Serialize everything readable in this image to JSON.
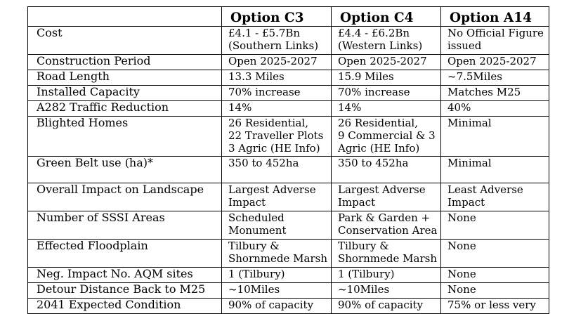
{
  "table": {
    "headers": [
      "",
      "Option C3",
      "Option C4",
      "Option A14"
    ],
    "rows": [
      {
        "label": "Cost",
        "c3": [
          "£4.1 - £5.7Bn",
          "(Southern Links)"
        ],
        "c4": [
          "£4.4 - £6.2Bn",
          "(Western Links)"
        ],
        "a14": [
          "No Official Figure",
          "issued"
        ]
      },
      {
        "label": "Construction Period",
        "c3": [
          "Open 2025-2027"
        ],
        "c4": [
          "Open 2025-2027"
        ],
        "a14": [
          "Open 2025-2027"
        ]
      },
      {
        "label": "Road Length",
        "c3": [
          "13.3 Miles"
        ],
        "c4": [
          "15.9 Miles"
        ],
        "a14": [
          "~7.5Miles"
        ]
      },
      {
        "label": "Installed Capacity",
        "c3": [
          "70% increase"
        ],
        "c4": [
          "70% increase"
        ],
        "a14": [
          "Matches M25"
        ]
      },
      {
        "label": "A282 Traffic Reduction",
        "c3": [
          "14%"
        ],
        "c4": [
          "14%"
        ],
        "a14": [
          "40%"
        ]
      },
      {
        "label": "Blighted Homes",
        "c3": [
          "26 Residential,",
          "22 Traveller Plots",
          "3 Agric (HE Info)"
        ],
        "c4": [
          "26 Residential,",
          "9 Commercial & 3",
          "Agric (HE Info)"
        ],
        "a14": [
          "Minimal"
        ]
      },
      {
        "label": "Green Belt use (ha)*",
        "c3": [
          "350 to 452ha"
        ],
        "c4": [
          "350 to 452ha"
        ],
        "a14": [
          "Minimal"
        ]
      },
      {
        "label": "Overall Impact on Landscape",
        "c3": [
          "Largest Adverse",
          "Impact"
        ],
        "c4": [
          "Largest Adverse",
          "Impact"
        ],
        "a14": [
          "Least Adverse",
          "Impact"
        ]
      },
      {
        "label": "Number of SSSI Areas",
        "c3": [
          "Scheduled",
          "Monument"
        ],
        "c4": [
          "Park & Garden +",
          "Conservation Area"
        ],
        "a14": [
          "None"
        ]
      },
      {
        "label": "Effected Floodplain",
        "c3": [
          "Tilbury &",
          "Shornmede Marsh"
        ],
        "c4": [
          "Tilbury &",
          "Shornmede Marsh"
        ],
        "a14": [
          "None"
        ]
      },
      {
        "label": "Neg. Impact No. AQM sites",
        "c3": [
          "1 (Tilbury)"
        ],
        "c4": [
          "1 (Tilbury)"
        ],
        "a14": [
          "None"
        ]
      },
      {
        "label": "Detour Distance Back to M25",
        "c3": [
          "~10Miles"
        ],
        "c4": [
          "~10Miles"
        ],
        "a14": [
          "None"
        ]
      },
      {
        "label": "2041 Expected Condition",
        "c3": [
          "90% of capacity"
        ],
        "c4": [
          "90% of capacity"
        ],
        "a14": [
          "75% or less very"
        ]
      }
    ]
  }
}
